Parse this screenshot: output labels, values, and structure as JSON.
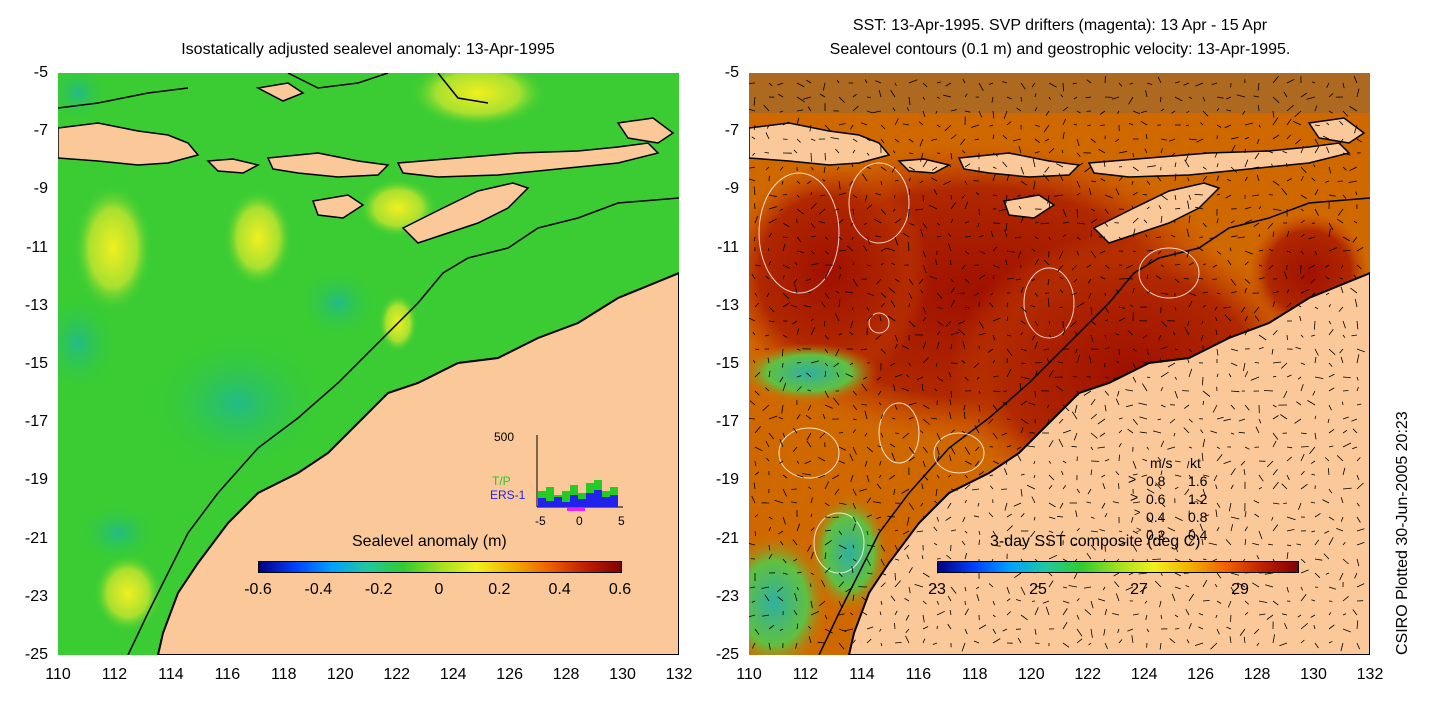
{
  "left_panel": {
    "title": "Isostatically adjusted sealevel anomaly: 13-Apr-1995",
    "colorbar": {
      "label": "Sealevel anomaly (m)",
      "ticks": [
        "-0.6",
        "-0.4",
        "-0.2",
        "0",
        "0.2",
        "0.4",
        "0.6"
      ]
    },
    "inset": {
      "ymax_label": "500",
      "series": [
        {
          "name": "T/P",
          "color": "#22cc22"
        },
        {
          "name": "ERS-1",
          "color": "#2222ee"
        }
      ],
      "xticks": [
        "-5",
        "0",
        "5"
      ]
    }
  },
  "right_panel": {
    "title_line1": "SST: 13-Apr-1995. SVP drifters (magenta): 13 Apr - 15 Apr",
    "title_line2": "Sealevel contours (0.1 m) and geostrophic velocity: 13-Apr-1995.",
    "colorbar": {
      "label": "3-day SST composite (deg C)",
      "ticks": [
        "23",
        "25",
        "27",
        "29"
      ]
    },
    "velocity_legend": {
      "header_ms": "m/s",
      "header_kt": "kt",
      "rows": [
        {
          "ms": "0.8",
          "kt": "1.6"
        },
        {
          "ms": "0.6",
          "kt": "1.2"
        },
        {
          "ms": "0.4",
          "kt": "0.8"
        },
        {
          "ms": "0.2",
          "kt": "0.4"
        }
      ]
    }
  },
  "y_ticks": [
    "-5",
    "-7",
    "-9",
    "-11",
    "-13",
    "-15",
    "-17",
    "-19",
    "-21",
    "-23",
    "-25"
  ],
  "x_ticks": [
    "110",
    "112",
    "114",
    "116",
    "118",
    "120",
    "122",
    "124",
    "126",
    "128",
    "130",
    "132"
  ],
  "side_note": "CSIRO Plotted 30-Jun-2005 20:23",
  "colors": {
    "land": "#fbc999",
    "ocean_green": "#33cc33",
    "sst_dark_red": "#a01000",
    "sst_orange": "#d86a00"
  }
}
